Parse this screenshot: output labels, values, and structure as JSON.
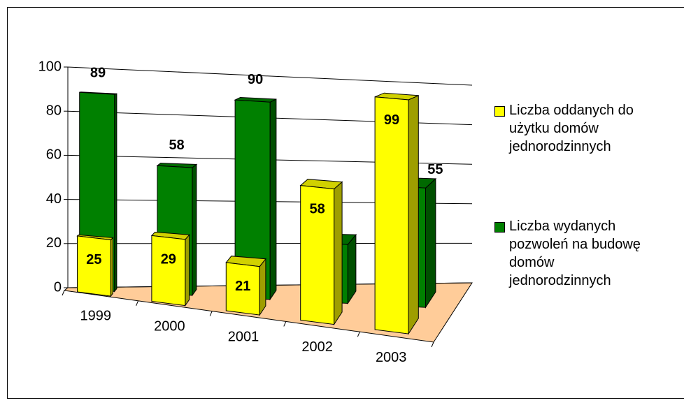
{
  "chart_data": {
    "type": "bar3d",
    "categories": [
      "1999",
      "2000",
      "2001",
      "2002",
      "2003"
    ],
    "series": [
      {
        "name": "Liczba oddanych do użytku domów jednorodzinnych",
        "color": "#ffff00",
        "values": [
          25,
          29,
          21,
          58,
          99
        ]
      },
      {
        "name": "Liczba wydanych pozwoleń na budowę domów jednorodzinnych",
        "color": "#008000",
        "values": [
          89,
          58,
          90,
          27,
          55
        ]
      }
    ],
    "ylim": [
      0,
      100
    ],
    "yticks": [
      0,
      20,
      40,
      60,
      80,
      100
    ],
    "grid": true,
    "legend": "right"
  }
}
